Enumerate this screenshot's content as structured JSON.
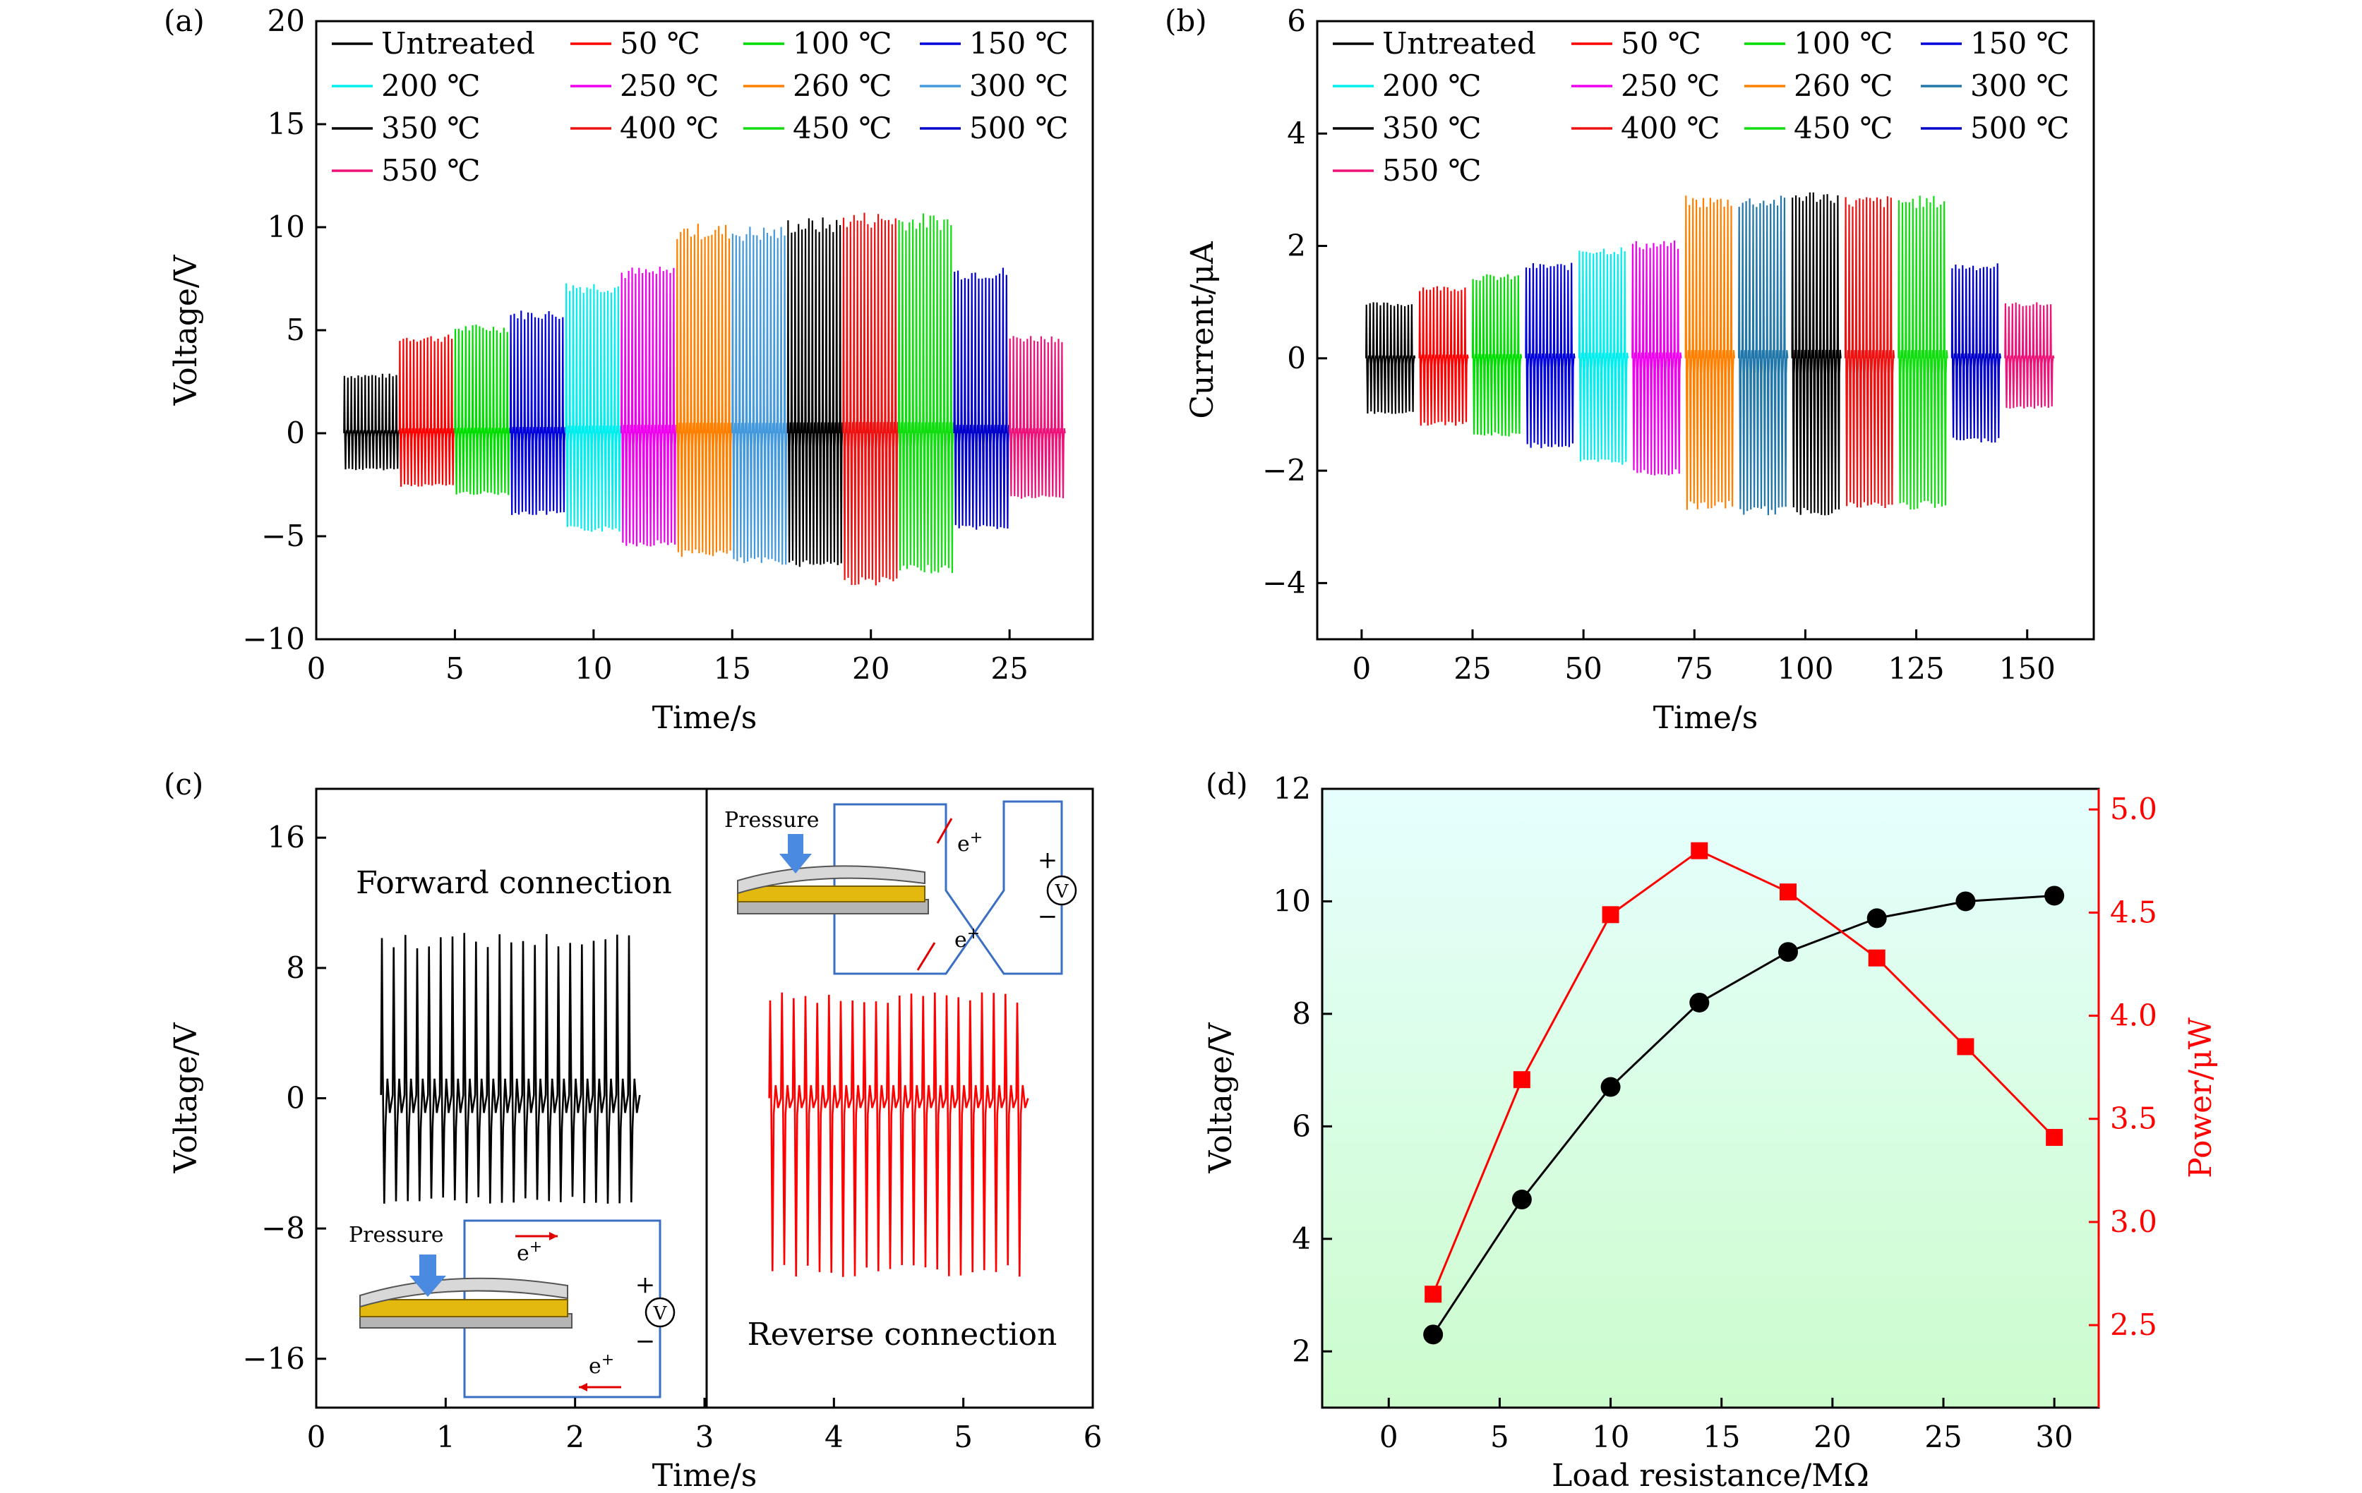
{
  "chart_data": [
    {
      "panel": "(a)",
      "type": "line",
      "xlabel": "Time/s",
      "ylabel": "Voltage/V",
      "xlim": [
        0,
        28
      ],
      "ylim": [
        -10,
        20
      ],
      "xticks": [
        0,
        5,
        10,
        15,
        20,
        25
      ],
      "yticks": [
        -10,
        -5,
        0,
        5,
        10,
        15,
        20
      ],
      "xtick_labels": [
        "0",
        "5",
        "10",
        "15",
        "20",
        "25"
      ],
      "ytick_labels": [
        "−10",
        "−5",
        "0",
        "5",
        "10",
        "15",
        "20"
      ],
      "legend_position": "top",
      "series": [
        {
          "name": "Untreated",
          "color": "#000000",
          "x_range": [
            1.0,
            3.0
          ],
          "max": 2.9,
          "min": -1.8
        },
        {
          "name": "50 ℃",
          "color": "#ff0000",
          "x_range": [
            3.0,
            5.0
          ],
          "max": 4.8,
          "min": -2.6
        },
        {
          "name": "100 ℃",
          "color": "#00dd00",
          "x_range": [
            5.0,
            7.0
          ],
          "max": 5.3,
          "min": -3.0
        },
        {
          "name": "150 ℃",
          "color": "#0000dd",
          "x_range": [
            7.0,
            9.0
          ],
          "max": 6.0,
          "min": -4.0
        },
        {
          "name": "200 ℃",
          "color": "#00eeee",
          "x_range": [
            9.0,
            11.0
          ],
          "max": 7.4,
          "min": -4.8
        },
        {
          "name": "250 ℃",
          "color": "#ee00ee",
          "x_range": [
            11.0,
            13.0
          ],
          "max": 8.1,
          "min": -5.5
        },
        {
          "name": "260 ℃",
          "color": "#ff8000",
          "x_range": [
            13.0,
            15.0
          ],
          "max": 10.2,
          "min": -6.0
        },
        {
          "name": "300 ℃",
          "color": "#4499dd",
          "x_range": [
            15.0,
            17.0
          ],
          "max": 10.1,
          "min": -6.4
        },
        {
          "name": "350 ℃",
          "color": "#000000",
          "x_range": [
            17.0,
            19.0
          ],
          "max": 10.5,
          "min": -6.5
        },
        {
          "name": "400 ℃",
          "color": "#ee1111",
          "x_range": [
            19.0,
            21.0
          ],
          "max": 10.8,
          "min": -7.4
        },
        {
          "name": "450 ℃",
          "color": "#11dd11",
          "x_range": [
            21.0,
            23.0
          ],
          "max": 10.7,
          "min": -6.8
        },
        {
          "name": "500 ℃",
          "color": "#0000cc",
          "x_range": [
            23.0,
            25.0
          ],
          "max": 8.1,
          "min": -4.7
        },
        {
          "name": "550 ℃",
          "color": "#ee1177",
          "x_range": [
            25.0,
            27.0
          ],
          "max": 4.8,
          "min": -3.2
        }
      ]
    },
    {
      "panel": "(b)",
      "type": "line",
      "xlabel": "Time/s",
      "ylabel": "Current/μA",
      "xlim": [
        -10,
        165
      ],
      "ylim": [
        -5,
        6
      ],
      "xticks": [
        0,
        25,
        50,
        75,
        100,
        125,
        150
      ],
      "yticks": [
        -4,
        -2,
        0,
        2,
        4,
        6
      ],
      "xtick_labels": [
        "0",
        "25",
        "50",
        "75",
        "100",
        "125",
        "150"
      ],
      "ytick_labels": [
        "−4",
        "−2",
        "0",
        "2",
        "4",
        "6"
      ],
      "legend_position": "top",
      "series": [
        {
          "name": "Untreated",
          "color": "#000000",
          "x_range": [
            1,
            12
          ],
          "max": 1.0,
          "min": -1.0
        },
        {
          "name": "50 ℃",
          "color": "#ff0000",
          "x_range": [
            13,
            24
          ],
          "max": 1.3,
          "min": -1.2
        },
        {
          "name": "100 ℃",
          "color": "#00dd00",
          "x_range": [
            25,
            36
          ],
          "max": 1.5,
          "min": -1.4
        },
        {
          "name": "150 ℃",
          "color": "#0000dd",
          "x_range": [
            37,
            48
          ],
          "max": 1.7,
          "min": -1.6
        },
        {
          "name": "200 ℃",
          "color": "#00eeee",
          "x_range": [
            49,
            60
          ],
          "max": 2.0,
          "min": -1.9
        },
        {
          "name": "250 ℃",
          "color": "#ee00ee",
          "x_range": [
            61,
            72
          ],
          "max": 2.1,
          "min": -2.1
        },
        {
          "name": "260 ℃",
          "color": "#ff8000",
          "x_range": [
            73,
            84
          ],
          "max": 2.9,
          "min": -2.7
        },
        {
          "name": "300 ℃",
          "color": "#2277aa",
          "x_range": [
            85,
            96
          ],
          "max": 2.9,
          "min": -2.8
        },
        {
          "name": "350 ℃",
          "color": "#000000",
          "x_range": [
            97,
            108
          ],
          "max": 3.0,
          "min": -2.8
        },
        {
          "name": "400 ℃",
          "color": "#ee1111",
          "x_range": [
            109,
            120
          ],
          "max": 2.9,
          "min": -2.7
        },
        {
          "name": "450 ℃",
          "color": "#11dd11",
          "x_range": [
            121,
            132
          ],
          "max": 2.9,
          "min": -2.7
        },
        {
          "name": "500 ℃",
          "color": "#0000cc",
          "x_range": [
            133,
            144
          ],
          "max": 1.7,
          "min": -1.5
        },
        {
          "name": "550 ℃",
          "color": "#ee1177",
          "x_range": [
            145,
            156
          ],
          "max": 1.0,
          "min": -0.9
        }
      ]
    },
    {
      "panel": "(c)",
      "type": "line",
      "xlabel": "Time/s",
      "ylabel": "Voltage/V",
      "xlim": [
        0,
        6
      ],
      "ylim": [
        -19,
        19
      ],
      "xticks": [
        0,
        1,
        2,
        3,
        4,
        5,
        6
      ],
      "yticks": [
        -16,
        -8,
        0,
        8,
        16
      ],
      "xtick_labels": [
        "0",
        "1",
        "2",
        "3",
        "4",
        "5",
        "6"
      ],
      "ytick_labels": [
        "−16",
        "−8",
        "0",
        "8",
        "16"
      ],
      "annotations": [
        "Forward connection",
        "Reverse connection"
      ],
      "inset_labels": {
        "pressure": "Pressure",
        "electron": "e",
        "electron_sup": "+",
        "plus": "+",
        "minus": "−",
        "meter": "V"
      },
      "series": [
        {
          "name": "Forward connection",
          "color": "#000000",
          "x_range": [
            0.5,
            2.5
          ],
          "peaks": 22,
          "max": 10.2,
          "min": -6.5,
          "baseline": 0.2
        },
        {
          "name": "Reverse connection",
          "color": "#ff0000",
          "x_range": [
            3.5,
            5.5
          ],
          "peaks": 22,
          "max": 6.5,
          "min": -11.0,
          "baseline": 0.0
        }
      ]
    },
    {
      "panel": "(d)",
      "type": "line",
      "xlabel": "Load resistance/MΩ",
      "ylabel": "Voltage/V",
      "y2label": "Power/μW",
      "xlim": [
        -3,
        32
      ],
      "ylim": [
        1,
        12
      ],
      "y2lim": [
        2.1,
        5.1
      ],
      "xticks": [
        0,
        5,
        10,
        15,
        20,
        25,
        30
      ],
      "yticks": [
        2,
        4,
        6,
        8,
        10,
        12
      ],
      "y2ticks": [
        2.5,
        3.0,
        3.5,
        4.0,
        4.5,
        5.0
      ],
      "xtick_labels": [
        "0",
        "5",
        "10",
        "15",
        "20",
        "25",
        "30"
      ],
      "ytick_labels": [
        "2",
        "4",
        "6",
        "8",
        "10",
        "12"
      ],
      "y2tick_labels": [
        "2.5",
        "3.0",
        "3.5",
        "4.0",
        "4.5",
        "5.0"
      ],
      "background": "gradient cyan to green",
      "series": [
        {
          "name": "Voltage",
          "axis": "left",
          "color": "#000000",
          "marker": "circle",
          "x": [
            2,
            6,
            10,
            14,
            18,
            22,
            26,
            30
          ],
          "y": [
            2.3,
            4.7,
            6.7,
            8.2,
            9.1,
            9.7,
            10.0,
            10.1
          ]
        },
        {
          "name": "Power",
          "axis": "right",
          "color": "#ff0000",
          "marker": "square",
          "x": [
            2,
            6,
            10,
            14,
            18,
            22,
            26,
            30
          ],
          "y": [
            2.65,
            3.69,
            4.49,
            4.8,
            4.6,
            4.28,
            3.85,
            3.41
          ]
        }
      ]
    }
  ]
}
